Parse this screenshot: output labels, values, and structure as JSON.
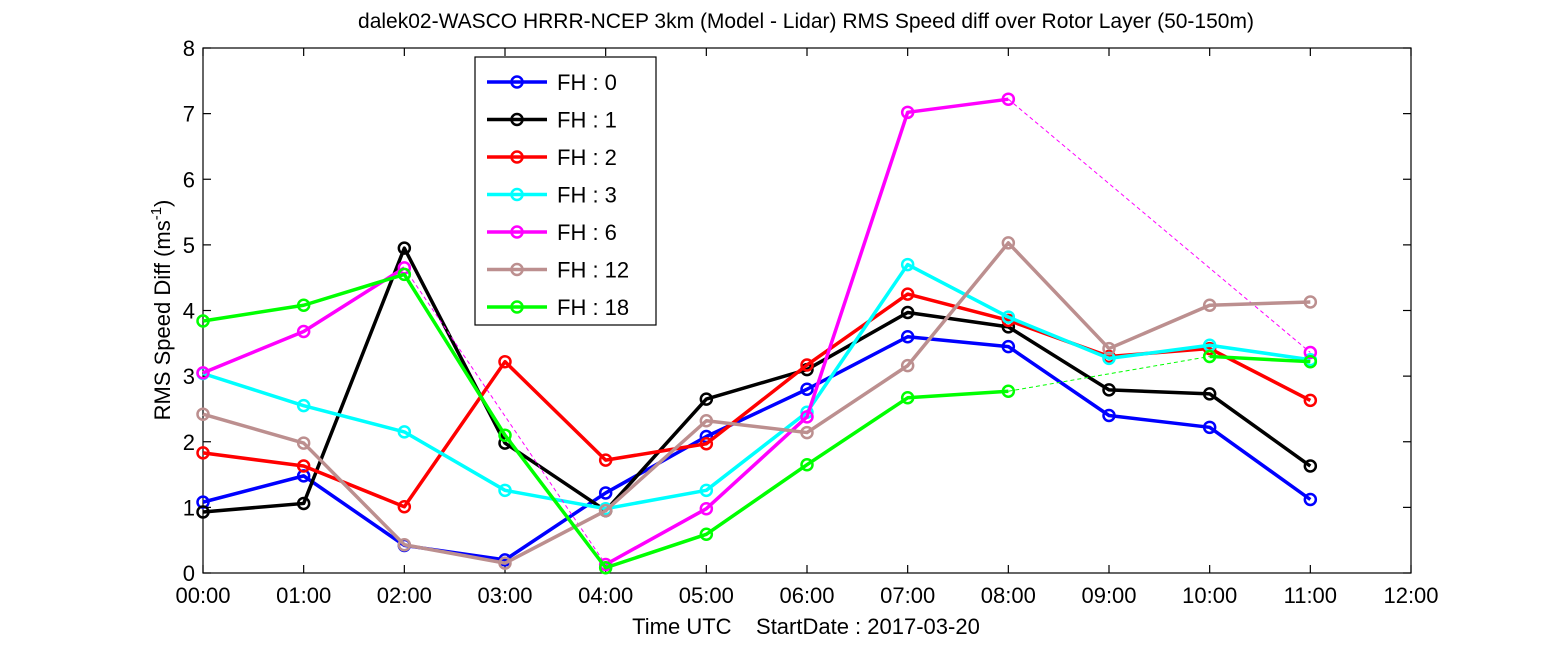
{
  "chart_data": {
    "type": "line",
    "title": "dalek02-WASCO HRRR-NCEP 3km (Model - Lidar) RMS Speed diff over Rotor Layer (50-150m)",
    "xlabel": "Time UTC    StartDate : 2017-03-20",
    "ylabel_main": "RMS Speed Diff (ms",
    "ylabel_sup": "-1",
    "ylabel_close": ")",
    "x_ticks": [
      "00:00",
      "01:00",
      "02:00",
      "03:00",
      "04:00",
      "05:00",
      "06:00",
      "07:00",
      "08:00",
      "09:00",
      "10:00",
      "11:00",
      "12:00"
    ],
    "y_ticks": [
      "0",
      "1",
      "2",
      "3",
      "4",
      "5",
      "6",
      "7",
      "8"
    ],
    "xlim": [
      0,
      12
    ],
    "ylim": [
      0,
      8
    ],
    "grid": false,
    "legend_position": "top-left",
    "series": [
      {
        "name": "FH : 0",
        "color": "#0000ff",
        "x": [
          0,
          1,
          2,
          3,
          4,
          5,
          6,
          7,
          8,
          9,
          10,
          11
        ],
        "y": [
          1.08,
          1.48,
          0.42,
          0.2,
          1.22,
          2.08,
          2.8,
          3.6,
          3.45,
          2.4,
          2.22,
          1.12
        ],
        "gaps": []
      },
      {
        "name": "FH : 1",
        "color": "#000000",
        "x": [
          0,
          1,
          2,
          3,
          4,
          5,
          6,
          7,
          8,
          9,
          10,
          11
        ],
        "y": [
          0.93,
          1.06,
          4.95,
          1.98,
          0.95,
          2.65,
          3.1,
          3.97,
          3.75,
          2.79,
          2.73,
          1.63
        ],
        "gaps": []
      },
      {
        "name": "FH : 2",
        "color": "#ff0000",
        "x": [
          0,
          1,
          2,
          3,
          4,
          5,
          6,
          7,
          8,
          9,
          10,
          11
        ],
        "y": [
          1.83,
          1.63,
          1.01,
          3.22,
          1.72,
          1.97,
          3.17,
          4.25,
          3.85,
          3.3,
          3.42,
          2.63
        ],
        "gaps": []
      },
      {
        "name": "FH : 3",
        "color": "#00ffff",
        "x": [
          0,
          1,
          2,
          3,
          4,
          5,
          6,
          7,
          8,
          9,
          10,
          11
        ],
        "y": [
          3.04,
          2.55,
          2.15,
          1.26,
          0.98,
          1.26,
          2.45,
          4.7,
          3.9,
          3.27,
          3.47,
          3.25
        ],
        "gaps": []
      },
      {
        "name": "FH : 6",
        "color": "#ff00ff",
        "x": [
          0,
          1,
          2,
          4,
          5,
          6,
          7,
          8,
          11
        ],
        "y": [
          3.05,
          3.68,
          4.65,
          0.13,
          0.98,
          2.38,
          7.02,
          7.22,
          3.36
        ],
        "gaps": [
          [
            2,
            4
          ],
          [
            8,
            11
          ]
        ]
      },
      {
        "name": "FH : 12",
        "color": "#bc8f8f",
        "x": [
          0,
          1,
          2,
          3,
          4,
          5,
          6,
          7,
          8,
          9,
          10,
          11
        ],
        "y": [
          2.42,
          1.98,
          0.43,
          0.15,
          0.95,
          2.32,
          2.14,
          3.16,
          5.03,
          3.42,
          4.08,
          4.13
        ],
        "gaps": []
      },
      {
        "name": "FH : 18",
        "color": "#00ff00",
        "x": [
          0,
          1,
          2,
          3,
          4,
          5,
          6,
          7,
          8,
          10,
          11
        ],
        "y": [
          3.84,
          4.08,
          4.55,
          2.1,
          0.08,
          0.59,
          1.65,
          2.67,
          2.77,
          3.3,
          3.22
        ],
        "gaps": [
          [
            8,
            10
          ]
        ]
      }
    ]
  }
}
